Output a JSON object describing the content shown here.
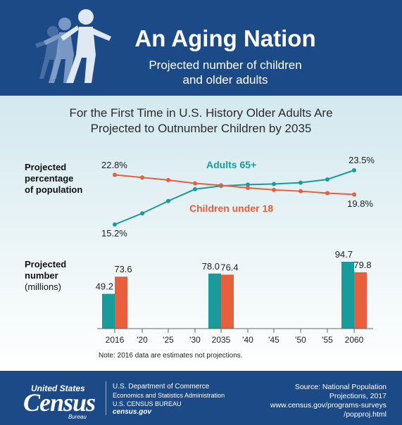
{
  "header": {
    "title": "An Aging Nation",
    "subtitle_line1": "Projected number of children",
    "subtitle_line2": "and older adults"
  },
  "headline_line1": "For the First Time in U.S. History Older Adults Are",
  "headline_line2": "Projected to Outnumber Children by 2035",
  "percent_label_lines": [
    "Projected",
    "percentage",
    "of population"
  ],
  "number_label_lines": [
    "Projected",
    "number"
  ],
  "number_label_unit": "(millions)",
  "note": "Note: 2016 data are estimates not projections.",
  "colors": {
    "navy": "#1c4a86",
    "teal": "#1a9b9b",
    "orange": "#e85f3e"
  },
  "chart_data": [
    {
      "type": "line",
      "x": [
        2016,
        2020,
        2025,
        2030,
        2035,
        2040,
        2045,
        2050,
        2055,
        2060
      ],
      "series": [
        {
          "name": "Adults 65+",
          "values": [
            15.2,
            16.9,
            18.8,
            20.6,
            21.1,
            21.3,
            21.4,
            21.6,
            22.1,
            23.5
          ],
          "color": "#1a9b9b"
        },
        {
          "name": "Children under 18",
          "values": [
            22.8,
            22.4,
            22.0,
            21.5,
            21.2,
            20.8,
            20.5,
            20.3,
            20.0,
            19.8
          ],
          "color": "#e85f3e"
        }
      ],
      "point_labels": [
        {
          "text": "22.8%"
        },
        {
          "text": "15.2%"
        },
        {
          "text": "23.5%"
        },
        {
          "text": "19.8%"
        }
      ],
      "ylabel": "Projected percentage of population"
    },
    {
      "type": "bar",
      "categories": [
        "2016",
        "'20",
        "'25",
        "'30",
        "2035",
        "'40",
        "'45",
        "'50",
        "'55",
        "2060"
      ],
      "series": [
        {
          "name": "Adults 65+",
          "values": [
            49.2,
            null,
            null,
            null,
            78.0,
            null,
            null,
            null,
            null,
            94.7
          ],
          "labels": [
            "49.2",
            "",
            "",
            "",
            "78.0",
            "",
            "",
            "",
            "",
            "94.7"
          ],
          "color": "#1a9b9b"
        },
        {
          "name": "Children under 18",
          "values": [
            73.6,
            null,
            null,
            null,
            76.4,
            null,
            null,
            null,
            null,
            79.8
          ],
          "labels": [
            "73.6",
            "",
            "",
            "",
            "76.4",
            "",
            "",
            "",
            "",
            "79.8"
          ],
          "color": "#e85f3e"
        }
      ],
      "ylabel": "Projected number (millions)"
    }
  ],
  "footer": {
    "logo_line1": "United States",
    "logo_big": "Census",
    "logo_bureau": "Bureau",
    "agency_line1": "U.S. Department of Commerce",
    "agency_line2": "Economics and Statistics Administration",
    "agency_line3": "U.S. CENSUS BUREAU",
    "agency_line4": "census.gov",
    "source_lines": [
      "Source: National Population",
      "Projections, 2017",
      "www.census.gov/programs-surveys",
      "/popproj.html"
    ]
  }
}
